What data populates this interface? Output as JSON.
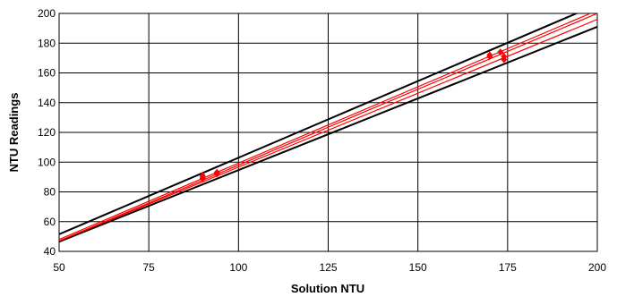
{
  "chart_data": {
    "type": "scatter",
    "xlabel": "Solution NTU",
    "ylabel": "NTU Readings",
    "xlim": [
      50,
      200
    ],
    "ylim": [
      40,
      200
    ],
    "x_ticks": [
      50,
      75,
      100,
      125,
      150,
      175,
      200
    ],
    "y_ticks": [
      40,
      60,
      80,
      100,
      120,
      140,
      160,
      180,
      200
    ],
    "x_tick_labels": [
      "50",
      "75",
      "100",
      "125",
      "150",
      "175",
      "200"
    ],
    "y_tick_labels": [
      "40",
      "60",
      "80",
      "100",
      "120",
      "140",
      "160",
      "180",
      "200"
    ],
    "grid": true,
    "reference_lines": [
      {
        "color": "#000000",
        "points": [
          [
            50,
            51.5
          ],
          [
            200,
            206
          ]
        ]
      },
      {
        "color": "#000000",
        "points": [
          [
            50,
            46.5
          ],
          [
            200,
            191
          ]
        ]
      }
    ],
    "series": [
      {
        "color": "#ff0000",
        "line": [
          [
            50,
            48
          ],
          [
            200,
            202
          ]
        ],
        "points": [
          [
            90,
            90
          ],
          [
            94,
            93
          ],
          [
            170,
            172
          ],
          [
            173,
            174
          ]
        ]
      },
      {
        "color": "#ff0000",
        "line": [
          [
            50,
            47
          ],
          [
            200,
            200
          ]
        ],
        "points": [
          [
            90,
            89
          ],
          [
            94,
            92
          ],
          [
            170,
            171
          ],
          [
            174,
            171
          ]
        ]
      },
      {
        "color": "#ff0000",
        "line": [
          [
            50,
            47
          ],
          [
            200,
            196
          ]
        ],
        "points": [
          [
            90,
            91
          ],
          [
            94,
            93
          ],
          [
            174,
            169
          ]
        ]
      }
    ]
  }
}
